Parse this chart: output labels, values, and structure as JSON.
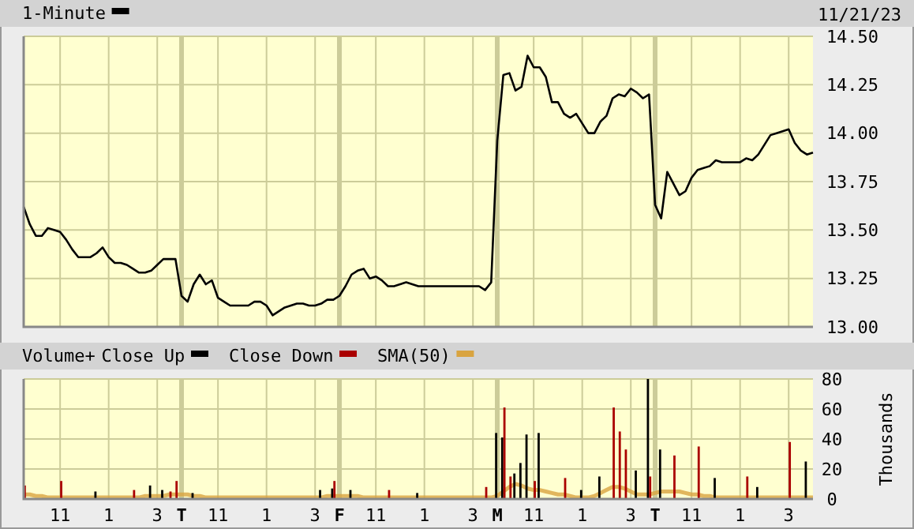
{
  "chart_data": [
    {
      "type": "line",
      "annotations": [
        "11/21/23"
      ],
      "legend": "top left",
      "grid": true,
      "tick_labels": "y",
      "ylim": [
        13.0,
        14.5
      ],
      "categories": [
        null,
        null,
        null,
        null,
        null,
        null,
        null,
        null,
        null,
        null,
        null,
        null,
        null,
        null,
        null,
        null,
        null,
        null,
        null,
        null,
        null,
        null,
        null,
        null,
        null,
        null,
        null,
        null,
        null,
        null,
        null,
        null,
        null,
        null,
        null,
        null,
        null,
        null,
        null,
        null,
        null,
        null,
        null,
        null,
        null,
        null,
        null,
        null,
        null,
        null,
        null,
        null,
        null,
        null,
        null,
        null,
        null,
        null,
        null,
        null,
        null,
        null,
        null,
        null,
        null,
        null,
        null,
        null,
        null,
        null,
        null,
        null,
        null,
        null,
        null,
        null,
        null,
        null,
        null,
        null,
        null,
        null,
        null,
        null,
        null,
        null,
        null,
        null,
        null,
        null,
        null,
        null,
        null,
        null,
        null,
        null,
        null,
        null,
        null,
        null,
        null,
        null,
        null,
        null,
        null,
        null,
        null,
        null,
        null,
        null,
        null,
        null,
        null,
        null,
        null,
        null,
        null,
        null,
        null,
        null,
        null,
        null,
        null,
        null,
        null,
        null,
        null,
        null,
        null,
        null,
        null
      ],
      "yticks": [
        {
          "value": 13.0,
          "label": "13.00"
        },
        {
          "value": 13.25,
          "label": "13.25"
        },
        {
          "value": 13.5,
          "label": "13.50"
        },
        {
          "value": 13.75,
          "label": "13.75"
        },
        {
          "value": 14.0,
          "label": "14.00"
        },
        {
          "value": 14.25,
          "label": "14.25"
        },
        {
          "value": 14.5,
          "label": "14.50"
        }
      ],
      "series": [
        {
          "name": "1-Minute",
          "color": "#000000",
          "values": [
            13.62,
            13.53,
            13.47,
            13.47,
            13.51,
            13.5,
            13.49,
            13.45,
            13.4,
            13.36,
            13.36,
            13.36,
            13.38,
            13.41,
            13.36,
            13.33,
            13.33,
            13.32,
            13.3,
            13.28,
            13.28,
            13.29,
            13.32,
            13.35,
            13.35,
            13.35,
            13.16,
            13.13,
            13.22,
            13.27,
            13.22,
            13.24,
            13.15,
            13.13,
            13.11,
            13.11,
            13.11,
            13.11,
            13.13,
            13.13,
            13.11,
            13.06,
            13.08,
            13.1,
            13.11,
            13.12,
            13.12,
            13.11,
            13.11,
            13.12,
            13.14,
            13.14,
            13.16,
            13.21,
            13.27,
            13.29,
            13.3,
            13.25,
            13.26,
            13.24,
            13.21,
            13.21,
            13.22,
            13.23,
            13.22,
            13.21,
            13.21,
            13.21,
            13.21,
            13.21,
            13.21,
            13.21,
            13.21,
            13.21,
            13.21,
            13.21,
            13.19,
            13.23,
            13.96,
            14.3,
            14.31,
            14.22,
            14.24,
            14.4,
            14.34,
            14.34,
            14.29,
            14.16,
            14.16,
            14.1,
            14.08,
            14.1,
            14.05,
            14.0,
            14.0,
            14.06,
            14.09,
            14.18,
            14.2,
            14.19,
            14.23,
            14.21,
            14.18,
            14.2,
            13.63,
            13.56,
            13.8,
            13.74,
            13.68,
            13.7,
            13.77,
            13.81,
            13.82,
            13.83,
            13.86,
            13.85,
            13.85,
            13.85,
            13.85,
            13.87,
            13.86,
            13.89,
            13.94,
            13.99,
            14.0,
            14.01,
            14.02,
            13.95,
            13.91,
            13.89,
            13.9
          ]
        }
      ]
    },
    {
      "type": "bar",
      "legend_title": "Volume+",
      "legend": "top left",
      "grid": true,
      "ylabel": "Thousands",
      "ylim": [
        0,
        80
      ],
      "yticks": [
        0,
        20,
        40,
        60,
        80
      ],
      "categories": [
        null,
        null,
        null,
        null,
        null,
        null,
        "11",
        null,
        null,
        null,
        null,
        null,
        null,
        null,
        "1",
        null,
        null,
        null,
        null,
        null,
        null,
        null,
        "3",
        null,
        null,
        null,
        "T",
        null,
        null,
        null,
        null,
        null,
        "11",
        null,
        null,
        null,
        null,
        null,
        null,
        null,
        "1",
        null,
        null,
        null,
        null,
        null,
        null,
        null,
        "3",
        null,
        null,
        null,
        "F",
        null,
        null,
        null,
        null,
        null,
        "11",
        null,
        null,
        null,
        null,
        null,
        null,
        null,
        "1",
        null,
        null,
        null,
        null,
        null,
        null,
        null,
        "3",
        null,
        null,
        null,
        "M",
        null,
        null,
        null,
        null,
        null,
        "11",
        null,
        null,
        null,
        null,
        null,
        null,
        null,
        "1",
        null,
        null,
        null,
        null,
        null,
        null,
        null,
        "3",
        null,
        null,
        null,
        "T",
        null,
        null,
        null,
        null,
        null,
        "11",
        null,
        null,
        null,
        null,
        null,
        null,
        null,
        "1",
        null,
        null,
        null,
        null,
        null,
        null,
        null,
        "3",
        null,
        null,
        null,
        null
      ],
      "series": [
        {
          "name": "Close Up",
          "type": "bar",
          "color": "#000000",
          "values": [
            null,
            null,
            null,
            null,
            null,
            null,
            null,
            null,
            null,
            null,
            null,
            null,
            5,
            null,
            null,
            null,
            null,
            null,
            null,
            null,
            null,
            9,
            null,
            6,
            null,
            null,
            null,
            null,
            4,
            null,
            null,
            null,
            null,
            null,
            null,
            null,
            null,
            null,
            null,
            null,
            null,
            null,
            null,
            null,
            null,
            null,
            null,
            null,
            null,
            6,
            null,
            7,
            null,
            null,
            6,
            null,
            null,
            null,
            null,
            null,
            null,
            null,
            null,
            null,
            null,
            4,
            null,
            null,
            null,
            null,
            null,
            null,
            null,
            null,
            null,
            null,
            null,
            null,
            44,
            41,
            null,
            17,
            24,
            43,
            null,
            44,
            null,
            null,
            null,
            null,
            null,
            null,
            6,
            null,
            null,
            15,
            null,
            null,
            null,
            null,
            null,
            19,
            null,
            80,
            null,
            33,
            null,
            null,
            null,
            null,
            null,
            null,
            null,
            null,
            14,
            null,
            null,
            null,
            null,
            null,
            null,
            8,
            null,
            null,
            null,
            null,
            null,
            null,
            null,
            25,
            null
          ]
        },
        {
          "name": "Close Down",
          "type": "bar",
          "color": "#aa0000",
          "values": [
            9,
            null,
            null,
            null,
            null,
            null,
            12,
            null,
            null,
            null,
            null,
            null,
            null,
            null,
            null,
            null,
            null,
            null,
            6,
            null,
            null,
            null,
            null,
            null,
            5,
            12,
            null,
            null,
            null,
            null,
            null,
            null,
            null,
            null,
            null,
            null,
            null,
            null,
            null,
            null,
            null,
            null,
            null,
            null,
            null,
            null,
            null,
            null,
            null,
            null,
            null,
            12,
            null,
            null,
            null,
            null,
            null,
            null,
            null,
            null,
            6,
            null,
            null,
            null,
            null,
            null,
            null,
            null,
            null,
            null,
            null,
            null,
            null,
            null,
            null,
            null,
            8,
            null,
            null,
            61,
            15,
            null,
            null,
            null,
            12,
            null,
            null,
            null,
            null,
            14,
            null,
            null,
            null,
            null,
            null,
            null,
            null,
            61,
            45,
            33,
            null,
            null,
            null,
            15,
            null,
            null,
            null,
            29,
            null,
            null,
            null,
            35,
            null,
            null,
            null,
            null,
            null,
            null,
            null,
            15,
            null,
            null,
            null,
            null,
            null,
            null,
            38,
            null,
            null,
            null,
            null
          ]
        },
        {
          "name": "SMA(50)",
          "type": "line",
          "color": "#d9a440",
          "values": [
            3,
            3,
            2,
            2,
            1,
            1,
            1,
            1,
            1,
            1,
            1,
            1,
            1,
            1,
            1,
            1,
            1,
            1,
            1,
            1,
            2,
            2,
            2,
            2,
            3,
            3,
            3,
            3,
            2,
            2,
            1,
            1,
            1,
            1,
            1,
            1,
            1,
            1,
            1,
            1,
            1,
            1,
            1,
            1,
            1,
            1,
            1,
            1,
            1,
            1,
            2,
            2,
            2,
            2,
            2,
            2,
            1,
            1,
            1,
            1,
            1,
            1,
            1,
            1,
            1,
            1,
            1,
            1,
            1,
            1,
            1,
            1,
            1,
            1,
            1,
            1,
            1,
            1,
            2,
            5,
            8,
            10,
            9,
            7,
            6,
            6,
            5,
            4,
            3,
            3,
            2,
            1,
            1,
            1,
            2,
            4,
            6,
            8,
            8,
            7,
            5,
            3,
            3,
            3,
            4,
            5,
            5,
            5,
            5,
            4,
            3,
            3,
            2,
            2,
            1,
            1,
            1,
            1,
            1,
            1,
            1,
            1,
            1,
            1,
            1,
            1,
            1,
            1,
            1,
            1,
            1
          ]
        }
      ]
    }
  ]
}
